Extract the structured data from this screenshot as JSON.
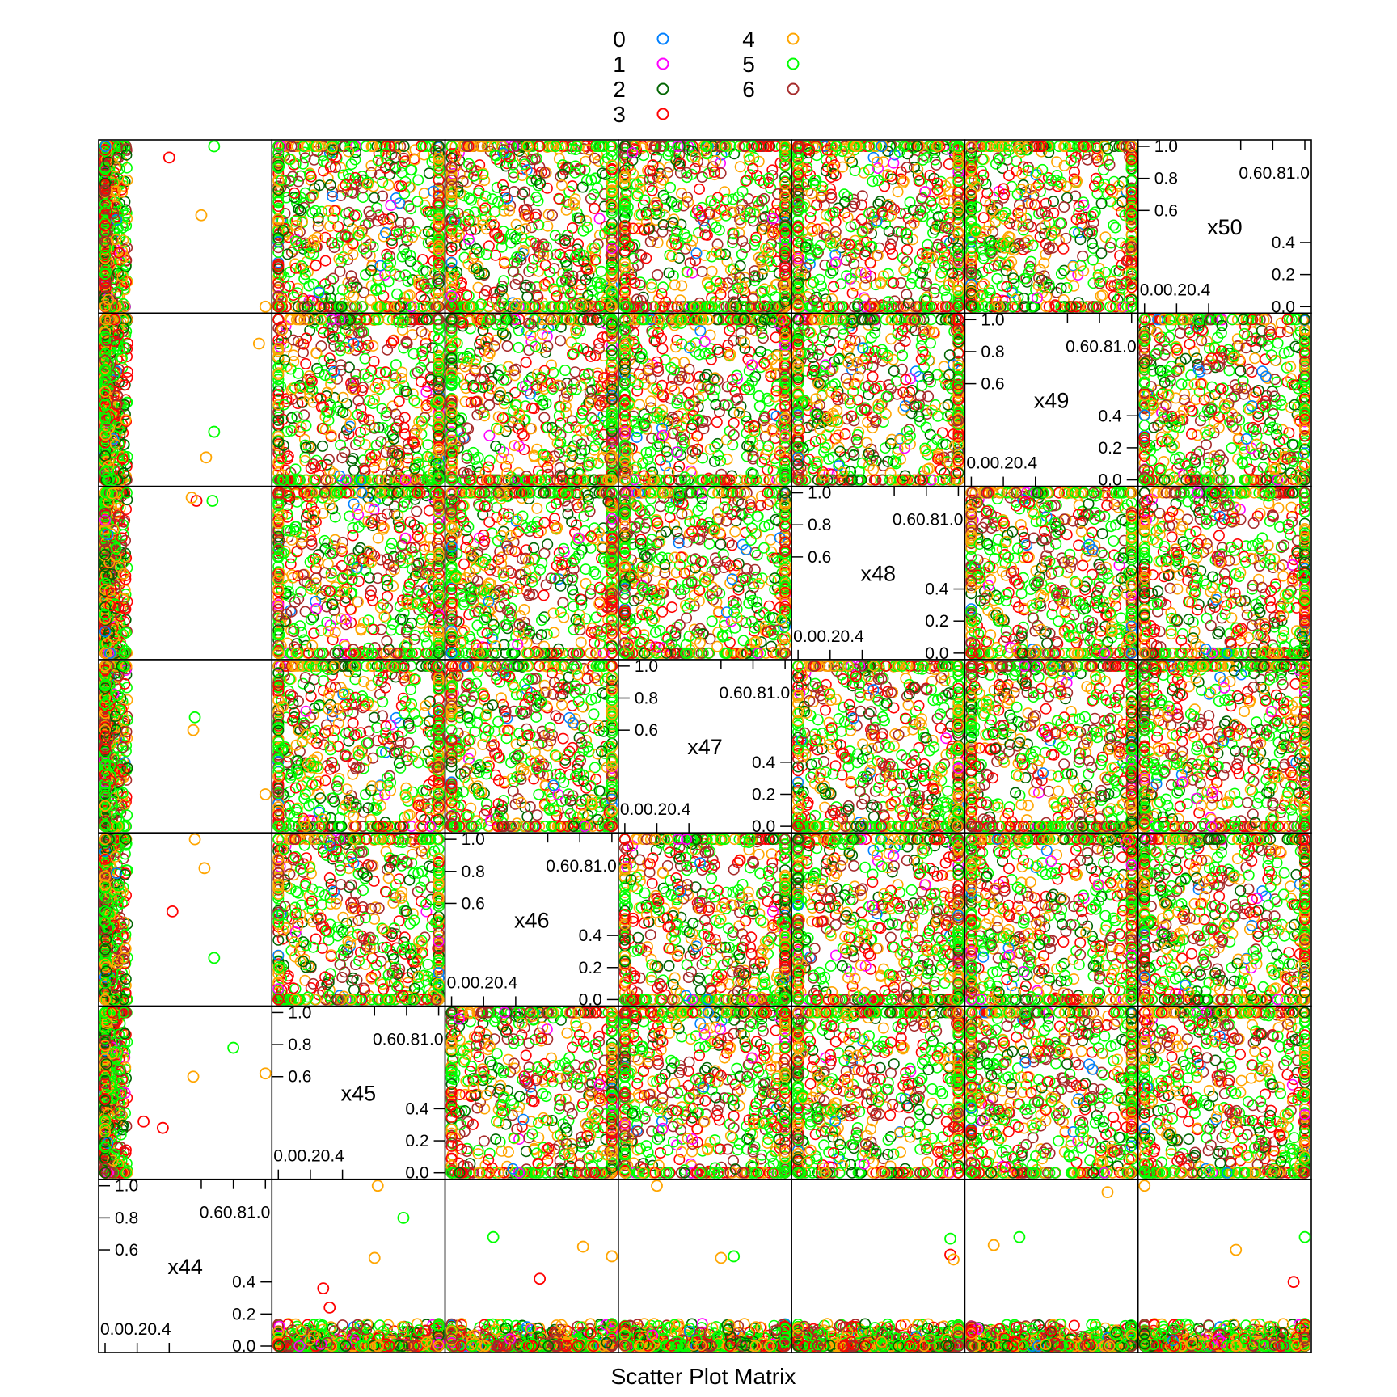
{
  "chart_data": {
    "type": "scatter",
    "variant": "scatter-plot-matrix",
    "xlabel": "Scatter Plot Matrix",
    "variables": [
      "x44",
      "x45",
      "x46",
      "x47",
      "x48",
      "x49",
      "x50"
    ],
    "variable_range": [
      0.0,
      1.0
    ],
    "axis_ticks": [
      "0.0",
      "0.2",
      "0.4",
      "0.6",
      "0.8",
      "1.0"
    ],
    "top_tick_labels": "0.60.81.0",
    "bottom_tick_labels": "0.00.20.4",
    "diagonal_position": "bottom-left to top-right",
    "grid": false,
    "legend": {
      "placement": "top-center",
      "columns": 2,
      "marker": "open-circle",
      "entries": [
        {
          "label": "0",
          "color": "#0080ff"
        },
        {
          "label": "1",
          "color": "#ff00ff"
        },
        {
          "label": "2",
          "color": "#006400"
        },
        {
          "label": "3",
          "color": "#ff0000"
        },
        {
          "label": "4",
          "color": "#ffa500"
        },
        {
          "label": "5",
          "color": "#00ff00"
        },
        {
          "label": "6",
          "color": "#a52a2a"
        }
      ]
    },
    "panel_description": "Off-diagonal panels show points roughly uniform over [0,1] with dense bands at 0 and 1 for variables x45-x50; x44 values are concentrated near 0.0-0.1 with a few outliers.",
    "x44_outliers": [
      {
        "x44": 0.36,
        "x45": 0.28,
        "group": "3"
      },
      {
        "x44": 0.24,
        "x45": 0.32,
        "group": "3"
      },
      {
        "x44": 0.55,
        "x45": 0.6,
        "group": "4"
      },
      {
        "x44": 0.8,
        "x45": 0.78,
        "group": "5"
      },
      {
        "x44": 1.0,
        "x45": 0.62,
        "group": "4"
      },
      {
        "x44": 0.62,
        "x46": 0.82,
        "group": "4"
      },
      {
        "x44": 0.42,
        "x46": 0.55,
        "group": "3"
      },
      {
        "x44": 0.56,
        "x46": 1.0,
        "group": "4"
      },
      {
        "x44": 0.68,
        "x46": 0.26,
        "group": "5"
      },
      {
        "x44": 0.55,
        "x47": 0.6,
        "group": "4"
      },
      {
        "x44": 1.0,
        "x47": 0.2,
        "group": "4"
      },
      {
        "x44": 0.56,
        "x47": 0.68,
        "group": "5"
      },
      {
        "x44": 0.57,
        "x48": 0.95,
        "group": "3"
      },
      {
        "x44": 0.54,
        "x48": 0.97,
        "group": "4"
      },
      {
        "x44": 0.67,
        "x48": 0.95,
        "group": "5"
      },
      {
        "x44": 0.63,
        "x49": 0.14,
        "group": "4"
      },
      {
        "x44": 0.96,
        "x49": 0.85,
        "group": "4"
      },
      {
        "x44": 0.68,
        "x49": 0.3,
        "group": "5"
      },
      {
        "x44": 1.0,
        "x50": 0.0,
        "group": "4"
      },
      {
        "x44": 0.6,
        "x50": 0.57,
        "group": "4"
      },
      {
        "x44": 0.68,
        "x50": 1.0,
        "group": "5"
      },
      {
        "x44": 0.4,
        "x50": 0.93,
        "group": "3"
      }
    ]
  }
}
